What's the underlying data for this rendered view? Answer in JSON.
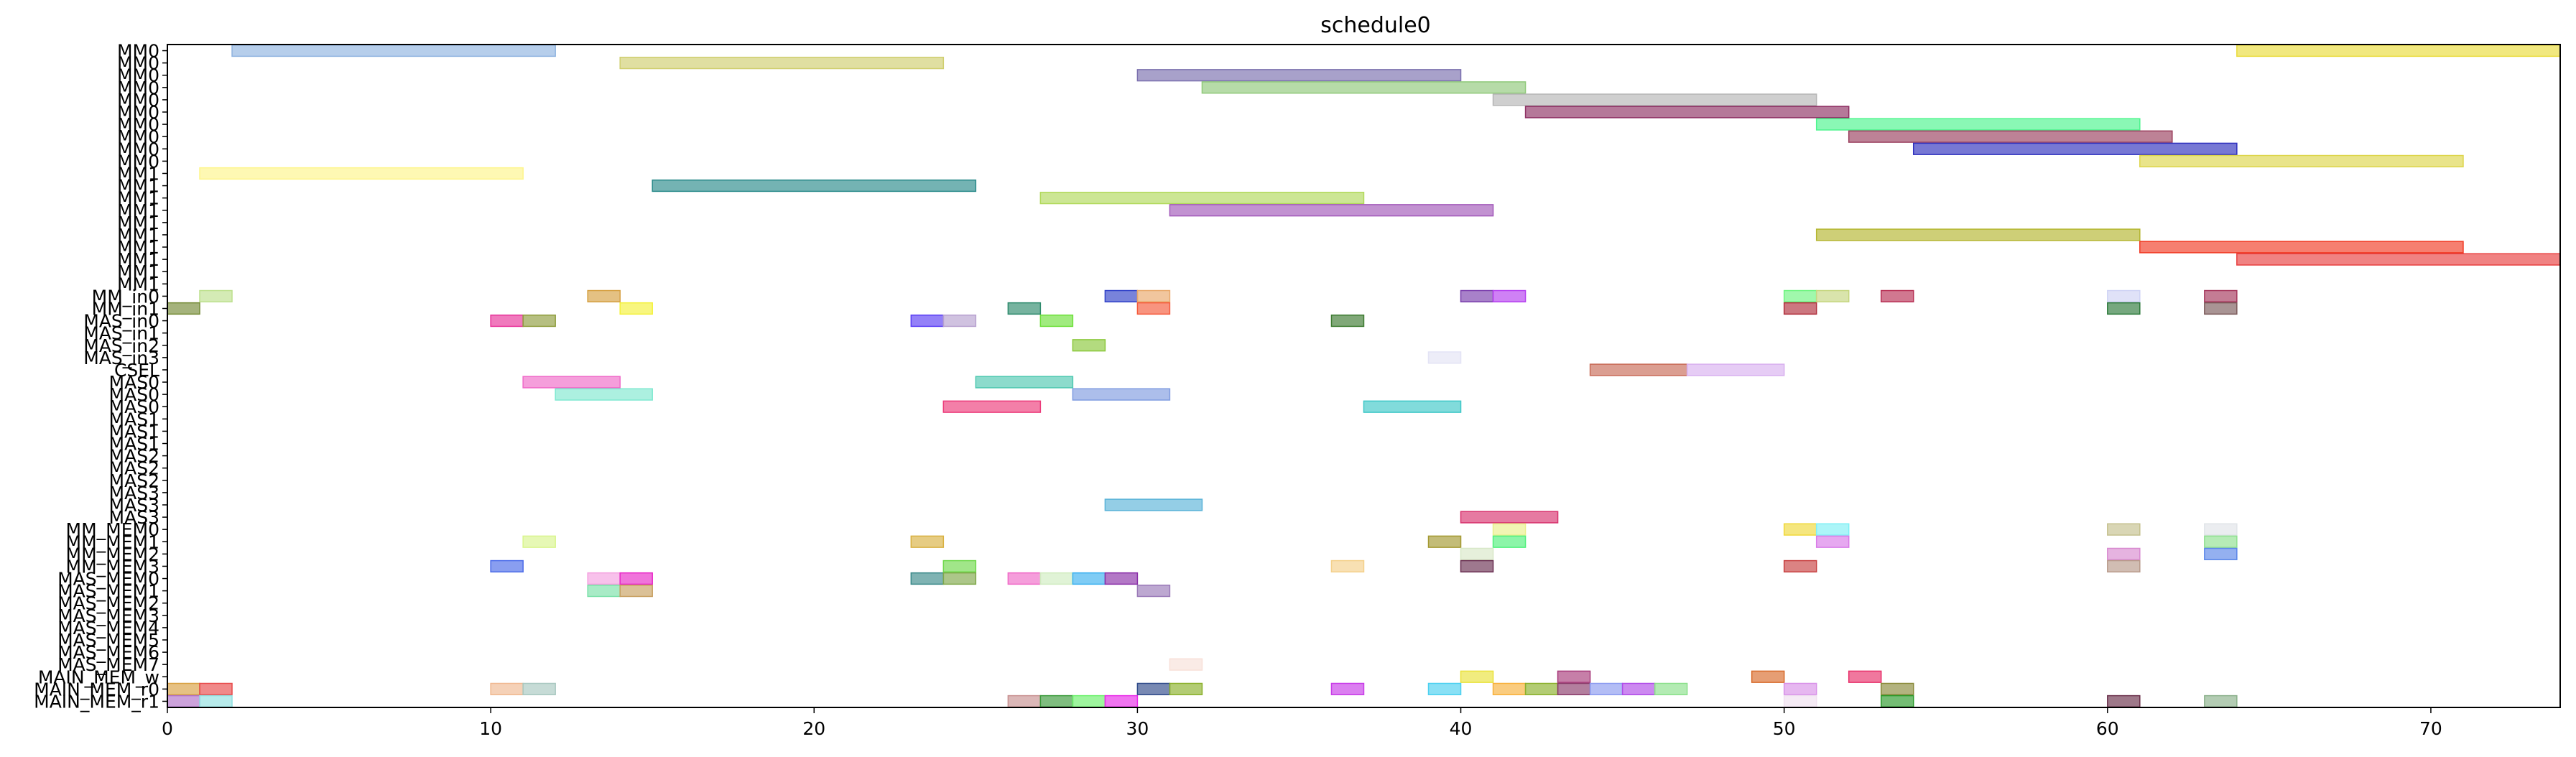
{
  "chart_data": {
    "type": "gantt",
    "title": "schedule0",
    "xlabel": "",
    "ylabel": "",
    "xlim": [
      0,
      74
    ],
    "x_ticks": [
      0,
      10,
      20,
      30,
      40,
      50,
      60,
      70
    ],
    "grid": false,
    "legend": "none",
    "rows": [
      "MM0",
      "MM0",
      "MM0",
      "MM0",
      "MM0",
      "MM0",
      "MM0",
      "MM0",
      "MM0",
      "MM0",
      "MM1",
      "MM1",
      "MM1",
      "MM1",
      "MM1",
      "MM1",
      "MM1",
      "MM1",
      "MM1",
      "MM1",
      "MM_in0",
      "MM_in1",
      "MAS_in0",
      "MAS_in1",
      "MAS_in2",
      "MAS_in3",
      "CSEL",
      "MAS0",
      "MAS0",
      "MAS0",
      "MAS1",
      "MAS1",
      "MAS1",
      "MAS2",
      "MAS2",
      "MAS2",
      "MAS3",
      "MAS3",
      "MAS3",
      "MM_MEM0",
      "MM_MEM1",
      "MM_MEM2",
      "MM_MEM3",
      "MAS_MEM0",
      "MAS_MEM1",
      "MAS_MEM2",
      "MAS_MEM3",
      "MAS_MEM4",
      "MAS_MEM5",
      "MAS_MEM6",
      "MAS_MEM7",
      "MAIN_MEM_w",
      "MAIN_MEM_r0",
      "MAIN_MEM_r1"
    ],
    "bars": [
      {
        "row": 0,
        "start": 2,
        "end": 12,
        "color": "#8fb3e0"
      },
      {
        "row": 0,
        "start": 64,
        "end": 74,
        "color": "#eadb3a"
      },
      {
        "row": 1,
        "start": 14,
        "end": 24,
        "color": "#cfce6e"
      },
      {
        "row": 2,
        "start": 30,
        "end": 40,
        "color": "#7a6fae"
      },
      {
        "row": 3,
        "start": 32,
        "end": 42,
        "color": "#8fc879"
      },
      {
        "row": 4,
        "start": 41,
        "end": 51,
        "color": "#b5b5b5"
      },
      {
        "row": 5,
        "start": 42,
        "end": 52,
        "color": "#8e2f63"
      },
      {
        "row": 6,
        "start": 51,
        "end": 61,
        "color": "#4cf58d"
      },
      {
        "row": 7,
        "start": 52,
        "end": 62,
        "color": "#9a3f5e"
      },
      {
        "row": 8,
        "start": 54,
        "end": 64,
        "color": "#2e2fbd"
      },
      {
        "row": 9,
        "start": 61,
        "end": 71,
        "color": "#ddd54b"
      },
      {
        "row": 10,
        "start": 1,
        "end": 11,
        "color": "#fdf58b"
      },
      {
        "row": 11,
        "start": 15,
        "end": 25,
        "color": "#2a8a8a"
      },
      {
        "row": 12,
        "start": 27,
        "end": 37,
        "color": "#b1d95a"
      },
      {
        "row": 13,
        "start": 31,
        "end": 41,
        "color": "#a257b9"
      },
      {
        "row": 15,
        "start": 51,
        "end": 61,
        "color": "#b4b52e"
      },
      {
        "row": 16,
        "start": 61,
        "end": 71,
        "color": "#f13a24"
      },
      {
        "row": 17,
        "start": 64,
        "end": 74,
        "color": "#e83f3f"
      },
      {
        "row": 20,
        "start": 1,
        "end": 2,
        "color": "#bde08d"
      },
      {
        "row": 20,
        "start": 13,
        "end": 14,
        "color": "#d59f40"
      },
      {
        "row": 20,
        "start": 29,
        "end": 30,
        "color": "#2f40c8"
      },
      {
        "row": 20,
        "start": 30,
        "end": 31,
        "color": "#e9a86a"
      },
      {
        "row": 20,
        "start": 40,
        "end": 41,
        "color": "#7a3dac"
      },
      {
        "row": 20,
        "start": 41,
        "end": 42,
        "color": "#b53ef0"
      },
      {
        "row": 20,
        "start": 50,
        "end": 51,
        "color": "#6df57f"
      },
      {
        "row": 20,
        "start": 51,
        "end": 52,
        "color": "#c5d67f"
      },
      {
        "row": 20,
        "start": 53,
        "end": 54,
        "color": "#b83055"
      },
      {
        "row": 20,
        "start": 60,
        "end": 61,
        "color": "#cfd3f5"
      },
      {
        "row": 20,
        "start": 63,
        "end": 64,
        "color": "#a5365b"
      },
      {
        "row": 21,
        "start": 0,
        "end": 1,
        "color": "#748b36"
      },
      {
        "row": 21,
        "start": 14,
        "end": 15,
        "color": "#f4f13a"
      },
      {
        "row": 21,
        "start": 26,
        "end": 27,
        "color": "#2d8a6c"
      },
      {
        "row": 21,
        "start": 30,
        "end": 31,
        "color": "#f55a3b"
      },
      {
        "row": 21,
        "start": 50,
        "end": 51,
        "color": "#b02e3c"
      },
      {
        "row": 21,
        "start": 60,
        "end": 61,
        "color": "#2d7a3a"
      },
      {
        "row": 21,
        "start": 63,
        "end": 64,
        "color": "#7b5a5a"
      },
      {
        "row": 22,
        "start": 10,
        "end": 11,
        "color": "#e8339a"
      },
      {
        "row": 22,
        "start": 11,
        "end": 12,
        "color": "#8f9d3d"
      },
      {
        "row": 22,
        "start": 23,
        "end": 24,
        "color": "#5a3ef5"
      },
      {
        "row": 22,
        "start": 24,
        "end": 25,
        "color": "#b7a1cf"
      },
      {
        "row": 22,
        "start": 27,
        "end": 28,
        "color": "#6de03a"
      },
      {
        "row": 22,
        "start": 36,
        "end": 37,
        "color": "#3c7a2f"
      },
      {
        "row": 24,
        "start": 28,
        "end": 29,
        "color": "#8bc83a"
      },
      {
        "row": 25,
        "start": 39,
        "end": 40,
        "color": "#e3e3f5"
      },
      {
        "row": 26,
        "start": 44,
        "end": 47,
        "color": "#c86a56"
      },
      {
        "row": 26,
        "start": 47,
        "end": 50,
        "color": "#d8b0ef"
      },
      {
        "row": 27,
        "start": 11,
        "end": 14,
        "color": "#f06ac8"
      },
      {
        "row": 27,
        "start": 25,
        "end": 28,
        "color": "#4ec8b0"
      },
      {
        "row": 28,
        "start": 12,
        "end": 15,
        "color": "#7fe8d0"
      },
      {
        "row": 28,
        "start": 28,
        "end": 31,
        "color": "#7f9be0"
      },
      {
        "row": 29,
        "start": 24,
        "end": 27,
        "color": "#ec3a7a"
      },
      {
        "row": 29,
        "start": 37,
        "end": 40,
        "color": "#3ec8c8"
      },
      {
        "row": 37,
        "start": 29,
        "end": 32,
        "color": "#5ab3d8"
      },
      {
        "row": 38,
        "start": 40,
        "end": 43,
        "color": "#d8336e"
      },
      {
        "row": 39,
        "start": 41,
        "end": 42,
        "color": "#e9f08b"
      },
      {
        "row": 39,
        "start": 50,
        "end": 51,
        "color": "#f0d83a"
      },
      {
        "row": 39,
        "start": 51,
        "end": 52,
        "color": "#7ff0f5"
      },
      {
        "row": 39,
        "start": 60,
        "end": 61,
        "color": "#c5c08e"
      },
      {
        "row": 39,
        "start": 63,
        "end": 64,
        "color": "#e0e4e8"
      },
      {
        "row": 40,
        "start": 11,
        "end": 12,
        "color": "#d9f58d"
      },
      {
        "row": 40,
        "start": 23,
        "end": 24,
        "color": "#d8b040"
      },
      {
        "row": 40,
        "start": 39,
        "end": 40,
        "color": "#a3982f"
      },
      {
        "row": 40,
        "start": 41,
        "end": 42,
        "color": "#4ef07a"
      },
      {
        "row": 40,
        "start": 51,
        "end": 52,
        "color": "#d87ae8"
      },
      {
        "row": 40,
        "start": 63,
        "end": 64,
        "color": "#8fe08f"
      },
      {
        "row": 41,
        "start": 40,
        "end": 41,
        "color": "#d8e8c8"
      },
      {
        "row": 41,
        "start": 60,
        "end": 61,
        "color": "#d88ad0"
      },
      {
        "row": 41,
        "start": 63,
        "end": 64,
        "color": "#5a86e8"
      },
      {
        "row": 42,
        "start": 10,
        "end": 11,
        "color": "#4a6ae8"
      },
      {
        "row": 42,
        "start": 24,
        "end": 25,
        "color": "#6ed84a"
      },
      {
        "row": 42,
        "start": 36,
        "end": 37,
        "color": "#f4d08a"
      },
      {
        "row": 42,
        "start": 40,
        "end": 41,
        "color": "#6a2f52"
      },
      {
        "row": 42,
        "start": 50,
        "end": 51,
        "color": "#c84040"
      },
      {
        "row": 42,
        "start": 60,
        "end": 61,
        "color": "#b89a8a"
      },
      {
        "row": 43,
        "start": 13,
        "end": 14,
        "color": "#f5a0e0"
      },
      {
        "row": 43,
        "start": 14,
        "end": 15,
        "color": "#e829c8"
      },
      {
        "row": 43,
        "start": 23,
        "end": 24,
        "color": "#3a8a8a"
      },
      {
        "row": 43,
        "start": 24,
        "end": 25,
        "color": "#7fa84a"
      },
      {
        "row": 43,
        "start": 26,
        "end": 27,
        "color": "#f06ac8"
      },
      {
        "row": 43,
        "start": 27,
        "end": 28,
        "color": "#d0ecc0"
      },
      {
        "row": 43,
        "start": 28,
        "end": 29,
        "color": "#3ab0f0"
      },
      {
        "row": 43,
        "start": 29,
        "end": 30,
        "color": "#8a2fa8"
      },
      {
        "row": 44,
        "start": 13,
        "end": 14,
        "color": "#7ae0a8"
      },
      {
        "row": 44,
        "start": 14,
        "end": 15,
        "color": "#c8a060"
      },
      {
        "row": 44,
        "start": 30,
        "end": 31,
        "color": "#9a7ab8"
      },
      {
        "row": 50,
        "start": 31,
        "end": 32,
        "color": "#f8e0d8"
      },
      {
        "row": 51,
        "start": 40,
        "end": 41,
        "color": "#eae23a"
      },
      {
        "row": 51,
        "start": 43,
        "end": 44,
        "color": "#a83a7a"
      },
      {
        "row": 51,
        "start": 49,
        "end": 50,
        "color": "#d86a2a"
      },
      {
        "row": 51,
        "start": 52,
        "end": 53,
        "color": "#e8306a"
      },
      {
        "row": 52,
        "start": 0,
        "end": 1,
        "color": "#d8a040"
      },
      {
        "row": 52,
        "start": 1,
        "end": 2,
        "color": "#e84a4a"
      },
      {
        "row": 52,
        "start": 10,
        "end": 11,
        "color": "#f0b890"
      },
      {
        "row": 52,
        "start": 11,
        "end": 12,
        "color": "#a8c8c0"
      },
      {
        "row": 52,
        "start": 30,
        "end": 31,
        "color": "#2f4a8a"
      },
      {
        "row": 52,
        "start": 31,
        "end": 32,
        "color": "#8ab02a"
      },
      {
        "row": 52,
        "start": 36,
        "end": 37,
        "color": "#c83ae8"
      },
      {
        "row": 52,
        "start": 39,
        "end": 40,
        "color": "#4ad0f0"
      },
      {
        "row": 52,
        "start": 41,
        "end": 42,
        "color": "#f8b03a"
      },
      {
        "row": 52,
        "start": 42,
        "end": 43,
        "color": "#8ab02a"
      },
      {
        "row": 52,
        "start": 43,
        "end": 44,
        "color": "#8a3a6a"
      },
      {
        "row": 52,
        "start": 44,
        "end": 45,
        "color": "#8a9af0"
      },
      {
        "row": 52,
        "start": 45,
        "end": 46,
        "color": "#b04ae8"
      },
      {
        "row": 52,
        "start": 46,
        "end": 47,
        "color": "#8ae08a"
      },
      {
        "row": 52,
        "start": 50,
        "end": 51,
        "color": "#d890e8"
      },
      {
        "row": 52,
        "start": 53,
        "end": 54,
        "color": "#8a8a3a"
      },
      {
        "row": 53,
        "start": 0,
        "end": 1,
        "color": "#b070c8"
      },
      {
        "row": 53,
        "start": 1,
        "end": 2,
        "color": "#90e0e0"
      },
      {
        "row": 53,
        "start": 26,
        "end": 27,
        "color": "#c89090"
      },
      {
        "row": 53,
        "start": 27,
        "end": 28,
        "color": "#3a9a3a"
      },
      {
        "row": 53,
        "start": 28,
        "end": 29,
        "color": "#6af06a"
      },
      {
        "row": 53,
        "start": 29,
        "end": 30,
        "color": "#e829e8"
      },
      {
        "row": 53,
        "start": 50,
        "end": 51,
        "color": "#f0e0f0"
      },
      {
        "row": 53,
        "start": 53,
        "end": 54,
        "color": "#2a9a2a"
      },
      {
        "row": 53,
        "start": 60,
        "end": 61,
        "color": "#6a2f4a"
      },
      {
        "row": 53,
        "start": 63,
        "end": 64,
        "color": "#8ab08a"
      }
    ]
  }
}
